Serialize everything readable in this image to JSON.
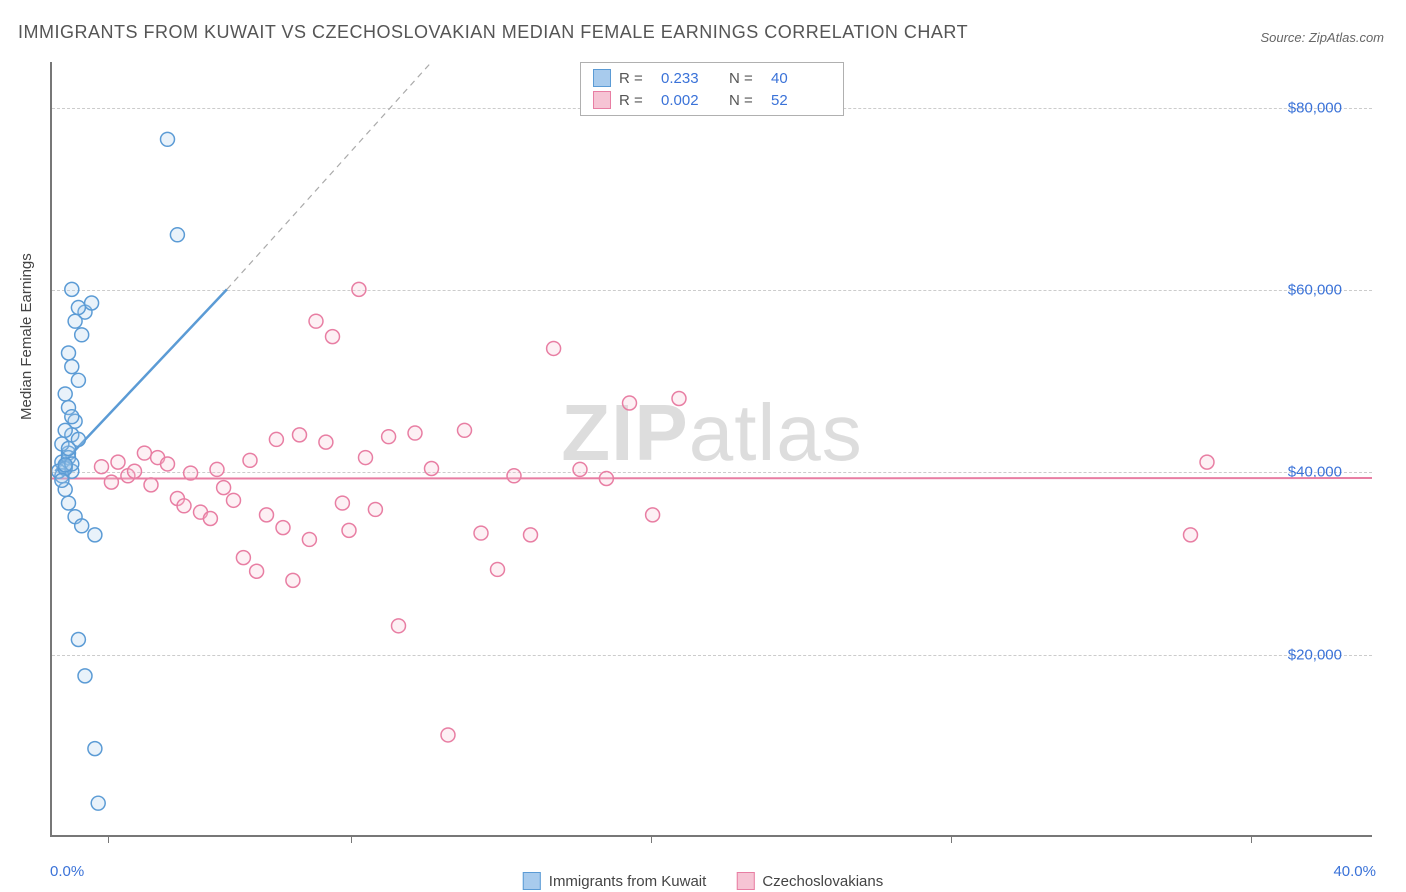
{
  "title": "IMMIGRANTS FROM KUWAIT VS CZECHOSLOVAKIAN MEDIAN FEMALE EARNINGS CORRELATION CHART",
  "source": "Source: ZipAtlas.com",
  "watermark_bold": "ZIP",
  "watermark_light": "atlas",
  "chart": {
    "type": "scatter",
    "x_axis": {
      "min_label": "0.0%",
      "max_label": "40.0%",
      "min": 0,
      "max": 40,
      "tick_positions_pct": [
        4.2,
        22.6,
        45.3,
        68.0,
        90.7
      ],
      "label_fontsize": 15,
      "label_color": "#3a72d8"
    },
    "y_axis": {
      "label": "Median Female Earnings",
      "min": 0,
      "max": 85000,
      "ticks": [
        {
          "value": 20000,
          "label": "$20,000"
        },
        {
          "value": 40000,
          "label": "$40,000"
        },
        {
          "value": 60000,
          "label": "$60,000"
        },
        {
          "value": 80000,
          "label": "$80,000"
        }
      ],
      "label_fontsize": 15,
      "label_color": "#444444",
      "tick_color": "#3a72d8"
    },
    "grid_color": "#cccccc",
    "background_color": "#ffffff",
    "marker_radius": 7,
    "marker_stroke_width": 1.5,
    "marker_fill_opacity": 0.25,
    "series": [
      {
        "name": "Immigrants from Kuwait",
        "r": 0.233,
        "n": 40,
        "color_stroke": "#5b9bd5",
        "color_fill": "#a8cbed",
        "regression": {
          "x1": 0.1,
          "y1": 40000,
          "x2": 5.3,
          "y2": 60000,
          "extend_dashed_to_x": 11.5,
          "extend_dashed_to_y": 85000
        },
        "points": [
          [
            0.3,
            41000
          ],
          [
            0.4,
            40500
          ],
          [
            0.5,
            42000
          ],
          [
            0.3,
            43000
          ],
          [
            0.6,
            44000
          ],
          [
            0.7,
            45500
          ],
          [
            0.5,
            47000
          ],
          [
            0.4,
            48500
          ],
          [
            0.8,
            50000
          ],
          [
            0.6,
            51500
          ],
          [
            0.5,
            53000
          ],
          [
            0.9,
            55000
          ],
          [
            0.7,
            56500
          ],
          [
            1.0,
            57500
          ],
          [
            0.8,
            58000
          ],
          [
            1.2,
            58500
          ],
          [
            0.6,
            60000
          ],
          [
            0.4,
            38000
          ],
          [
            0.5,
            36500
          ],
          [
            0.7,
            35000
          ],
          [
            0.9,
            34000
          ],
          [
            1.3,
            33000
          ],
          [
            0.6,
            40000
          ],
          [
            0.5,
            41500
          ],
          [
            0.3,
            39500
          ],
          [
            0.2,
            40000
          ],
          [
            0.4,
            40300
          ],
          [
            0.6,
            40800
          ],
          [
            0.8,
            21500
          ],
          [
            1.0,
            17500
          ],
          [
            1.3,
            9500
          ],
          [
            1.4,
            3500
          ],
          [
            3.5,
            76500
          ],
          [
            3.8,
            66000
          ],
          [
            0.3,
            39000
          ],
          [
            0.5,
            42500
          ],
          [
            0.4,
            44500
          ],
          [
            0.6,
            46000
          ],
          [
            0.8,
            43500
          ],
          [
            0.4,
            40700
          ]
        ]
      },
      {
        "name": "Czechoslovakians",
        "r": 0.002,
        "n": 52,
        "color_stroke": "#e87ea3",
        "color_fill": "#f6c4d4",
        "regression": {
          "x1": 0,
          "y1": 39200,
          "x2": 40,
          "y2": 39250
        },
        "points": [
          [
            1.5,
            40500
          ],
          [
            2.0,
            41000
          ],
          [
            2.3,
            39500
          ],
          [
            2.8,
            42000
          ],
          [
            3.0,
            38500
          ],
          [
            3.2,
            41500
          ],
          [
            3.5,
            40800
          ],
          [
            3.8,
            37000
          ],
          [
            4.0,
            36200
          ],
          [
            4.2,
            39800
          ],
          [
            4.5,
            35500
          ],
          [
            4.8,
            34800
          ],
          [
            5.0,
            40200
          ],
          [
            5.2,
            38200
          ],
          [
            5.5,
            36800
          ],
          [
            5.8,
            30500
          ],
          [
            6.0,
            41200
          ],
          [
            6.2,
            29000
          ],
          [
            6.5,
            35200
          ],
          [
            6.8,
            43500
          ],
          [
            7.0,
            33800
          ],
          [
            7.3,
            28000
          ],
          [
            7.5,
            44000
          ],
          [
            7.8,
            32500
          ],
          [
            8.0,
            56500
          ],
          [
            8.3,
            43200
          ],
          [
            8.5,
            54800
          ],
          [
            8.8,
            36500
          ],
          [
            9.0,
            33500
          ],
          [
            9.3,
            60000
          ],
          [
            9.5,
            41500
          ],
          [
            9.8,
            35800
          ],
          [
            10.2,
            43800
          ],
          [
            10.5,
            23000
          ],
          [
            11.0,
            44200
          ],
          [
            11.5,
            40300
          ],
          [
            12.0,
            11000
          ],
          [
            12.5,
            44500
          ],
          [
            13.0,
            33200
          ],
          [
            13.5,
            29200
          ],
          [
            14.0,
            39500
          ],
          [
            14.5,
            33000
          ],
          [
            15.2,
            53500
          ],
          [
            16.0,
            40200
          ],
          [
            16.8,
            39200
          ],
          [
            17.5,
            47500
          ],
          [
            18.2,
            35200
          ],
          [
            19.0,
            48000
          ],
          [
            34.5,
            33000
          ],
          [
            35.0,
            41000
          ],
          [
            2.5,
            40000
          ],
          [
            1.8,
            38800
          ]
        ]
      }
    ],
    "legend_top": {
      "r_label": "R  =",
      "n_label": "N  =",
      "fontsize": 15,
      "border_color": "#b0b0b0"
    },
    "legend_bottom": {
      "fontsize": 15
    }
  }
}
